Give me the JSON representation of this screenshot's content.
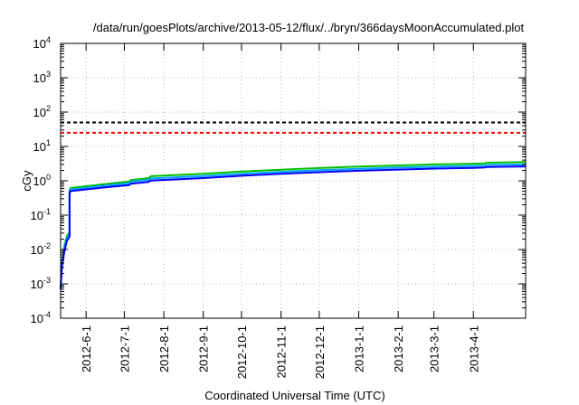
{
  "chart_data": {
    "type": "line",
    "title": "/data/run/goesPlots/archive/2013-05-12/flux/../bryn/366daysMoonAccumulated.plot",
    "xlabel": "Coordinated Universal Time (UTC)",
    "ylabel": "cGy",
    "yscale": "log",
    "ylim": [
      0.0001,
      10000
    ],
    "xlim": [
      "2012-05-12",
      "2013-05-12"
    ],
    "grid": true,
    "y_ticks": [
      {
        "value": 0.0001,
        "base": "10",
        "exp": "-4"
      },
      {
        "value": 0.001,
        "base": "10",
        "exp": "-3"
      },
      {
        "value": 0.01,
        "base": "10",
        "exp": "-2"
      },
      {
        "value": 0.1,
        "base": "10",
        "exp": "-1"
      },
      {
        "value": 1,
        "base": "10",
        "exp": "0"
      },
      {
        "value": 10,
        "base": "10",
        "exp": "1"
      },
      {
        "value": 100,
        "base": "10",
        "exp": "2"
      },
      {
        "value": 1000,
        "base": "10",
        "exp": "3"
      },
      {
        "value": 10000,
        "base": "10",
        "exp": "4"
      }
    ],
    "x_ticks": [
      "2012-6-1",
      "2012-7-1",
      "2012-8-1",
      "2012-9-1",
      "2012-10-1",
      "2012-11-1",
      "2012-12-1",
      "2013-1-1",
      "2013-2-1",
      "2013-3-1",
      "2013-4-1"
    ],
    "thresholds": [
      {
        "value": 50,
        "color": "#000000",
        "style": "dashed"
      },
      {
        "value": 25,
        "color": "#ff0000",
        "style": "dashed"
      }
    ],
    "series": [
      {
        "color": "#00c000",
        "x": [
          "2012-05-12",
          "2012-05-13",
          "2012-05-15",
          "2012-05-17",
          "2012-05-19",
          "2012-05-19",
          "2012-05-20",
          "2012-06-15",
          "2012-07-05",
          "2012-07-06",
          "2012-07-20",
          "2012-07-22",
          "2012-09-01",
          "2012-10-01",
          "2012-11-01",
          "2012-12-01",
          "2013-01-01",
          "2013-02-01",
          "2013-03-01",
          "2013-04-01",
          "2013-04-10",
          "2013-04-11",
          "2013-05-12"
        ],
        "y": [
          0.0009,
          0.004,
          0.013,
          0.025,
          0.032,
          0.55,
          0.62,
          0.8,
          0.95,
          1.05,
          1.2,
          1.36,
          1.6,
          1.85,
          2.1,
          2.35,
          2.6,
          2.8,
          3.0,
          3.15,
          3.22,
          3.35,
          3.5
        ]
      },
      {
        "color": "#00a0ff",
        "x": [
          "2012-05-12",
          "2012-05-13",
          "2012-05-15",
          "2012-05-17",
          "2012-05-19",
          "2012-05-19",
          "2012-05-20",
          "2012-06-15",
          "2012-07-05",
          "2012-07-06",
          "2012-07-20",
          "2012-07-22",
          "2012-09-01",
          "2012-10-01",
          "2012-11-01",
          "2012-12-01",
          "2013-01-01",
          "2013-02-01",
          "2013-03-01",
          "2013-04-01",
          "2013-04-10",
          "2013-04-11",
          "2013-05-12"
        ],
        "y": [
          0.0008,
          0.0035,
          0.011,
          0.022,
          0.028,
          0.52,
          0.56,
          0.72,
          0.85,
          0.94,
          1.07,
          1.17,
          1.38,
          1.6,
          1.82,
          2.03,
          2.24,
          2.42,
          2.58,
          2.72,
          2.78,
          2.88,
          3.0
        ]
      },
      {
        "color": "#0000ff",
        "x": [
          "2012-05-12",
          "2012-05-13",
          "2012-05-15",
          "2012-05-17",
          "2012-05-19",
          "2012-05-19",
          "2012-05-20",
          "2012-06-15",
          "2012-07-05",
          "2012-07-06",
          "2012-07-20",
          "2012-07-22",
          "2012-09-01",
          "2012-10-01",
          "2012-11-01",
          "2012-12-01",
          "2013-01-01",
          "2013-02-01",
          "2013-03-01",
          "2013-04-01",
          "2013-04-10",
          "2013-04-11",
          "2013-05-12"
        ],
        "y": [
          0.0007,
          0.003,
          0.009,
          0.018,
          0.024,
          0.45,
          0.5,
          0.64,
          0.75,
          0.82,
          0.93,
          1.02,
          1.2,
          1.4,
          1.6,
          1.78,
          1.96,
          2.12,
          2.26,
          2.38,
          2.43,
          2.52,
          2.62
        ]
      }
    ]
  }
}
